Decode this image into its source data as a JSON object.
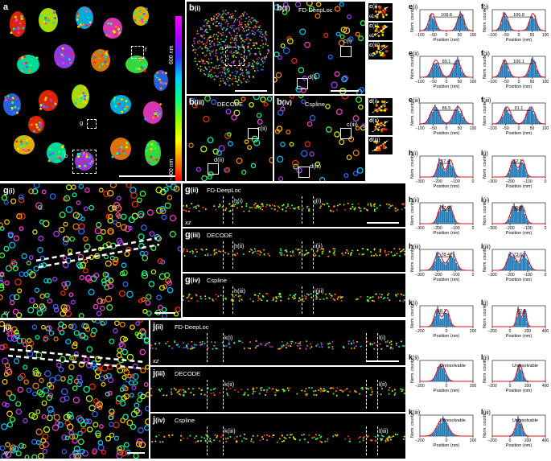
{
  "panel_a": {
    "letter": "a",
    "labels": [
      "f",
      "g",
      "b"
    ]
  },
  "colorbar": {
    "top": "600 nm",
    "bottom": "−300 nm",
    "plane": "xy"
  },
  "panel_b": {
    "bi": "b",
    "bi_sub": "(i)",
    "bii": "b",
    "bii_sub": "(ii)",
    "bii_title": "FD-DeepLoc",
    "bii_lbl": [
      "c(i)",
      "d(i)"
    ],
    "biii": "b",
    "biii_sub": "(iii)",
    "biii_title": "DECODE",
    "biii_lbl": [
      "c(ii)",
      "d(ii)"
    ],
    "biv": "b",
    "biv_sub": "(iv)",
    "biv_title": "Cspline",
    "biv_lbl": [
      "c(iii)",
      "d(iii)"
    ]
  },
  "panel_c": [
    {
      "l": "c",
      "s": "(i)"
    },
    {
      "l": "c",
      "s": "(ii)"
    },
    {
      "l": "c",
      "s": "(iii)"
    }
  ],
  "panel_d": [
    {
      "l": "d",
      "s": "(i)"
    },
    {
      "l": "d",
      "s": "(ii)"
    },
    {
      "l": "d",
      "s": "(iii)"
    }
  ],
  "cd_small": {
    "e": [
      "e(i)",
      "e(ii)",
      "e(iii)"
    ],
    "f": [
      "f(i)",
      "f(ii)",
      "f(iii)"
    ],
    "d": [
      "(i)",
      "(ii)",
      "(iii)"
    ]
  },
  "panel_g": {
    "gi": "g",
    "gi_sub": "(i)",
    "plane": "xy",
    "rows": [
      {
        "l": "g",
        "s": "(ii)",
        "title": "FD-DeepLoc",
        "marks": [
          "h(i)",
          "i(i)"
        ],
        "plane": "xz"
      },
      {
        "l": "g",
        "s": "(iii)",
        "title": "DECODE",
        "marks": [
          "h(ii)",
          "i(ii)"
        ]
      },
      {
        "l": "g",
        "s": "(iv)",
        "title": "Cspline",
        "marks": [
          "h(iii)",
          "i(iii)"
        ]
      }
    ]
  },
  "panel_j": {
    "ji": "j",
    "ji_sub": "(i)",
    "plane": "xy",
    "rows": [
      {
        "l": "j",
        "s": "(ii)",
        "title": "FD-DeepLoc",
        "marks": [
          "k(i)",
          "l(i)"
        ],
        "plane": "xz"
      },
      {
        "l": "j",
        "s": "(iii)",
        "title": "DECODE",
        "marks": [
          "k(ii)",
          "l(ii)"
        ]
      },
      {
        "l": "j",
        "s": "(iv)",
        "title": "Cspline",
        "marks": [
          "k(iii)",
          "l(iii)"
        ]
      }
    ]
  },
  "chart_data": [
    {
      "type": "bar",
      "id": "e(i)",
      "letter": "e",
      "sub": "(i)",
      "xlabel": "Position (nm)",
      "ylabel": "Norm. counts",
      "xlim": [
        -100,
        100
      ],
      "xticks": [
        -100,
        -50,
        0,
        50,
        100
      ],
      "annot": "108.8",
      "peaks": [
        -54,
        54
      ],
      "width": 12
    },
    {
      "type": "bar",
      "id": "e(ii)",
      "letter": "e",
      "sub": "(ii)",
      "xlabel": "Position (nm)",
      "ylabel": "Norm. counts",
      "xlim": [
        -100,
        100
      ],
      "xticks": [
        -100,
        -50,
        0,
        50,
        100
      ],
      "annot": "80.1",
      "peaks": [
        -40,
        40
      ],
      "width": 14
    },
    {
      "type": "bar",
      "id": "e(iii)",
      "letter": "e",
      "sub": "(iii)",
      "xlabel": "Position (nm)",
      "ylabel": "Norm. counts",
      "xlim": [
        -100,
        100
      ],
      "xticks": [
        -100,
        -50,
        0,
        50,
        100
      ],
      "annot": "86.5",
      "peaks": [
        -43,
        43
      ],
      "width": 16
    },
    {
      "type": "bar",
      "id": "f(i)",
      "letter": "f",
      "sub": "(i)",
      "xlabel": "Position (nm)",
      "ylabel": "Norm. counts",
      "xlim": [
        -100,
        100
      ],
      "xticks": [
        -100,
        -50,
        0,
        50,
        100
      ],
      "annot": "106.8",
      "peaks": [
        -53,
        53
      ],
      "width": 12
    },
    {
      "type": "bar",
      "id": "f(ii)",
      "letter": "f",
      "sub": "(ii)",
      "xlabel": "Position (nm)",
      "ylabel": "Norm. counts",
      "xlim": [
        -100,
        100
      ],
      "xticks": [
        -100,
        -50,
        0,
        50,
        100
      ],
      "annot": "106.1",
      "peaks": [
        -53,
        53
      ],
      "width": 13
    },
    {
      "type": "bar",
      "id": "f(iii)",
      "letter": "f",
      "sub": "(iii)",
      "xlabel": "Position (nm)",
      "ylabel": "Norm. counts",
      "xlim": [
        -100,
        100
      ],
      "xticks": [
        -100,
        -50,
        0,
        50,
        100
      ],
      "annot": "91.1",
      "peaks": [
        -45,
        45
      ],
      "width": 15
    },
    {
      "type": "bar",
      "id": "h(i)",
      "letter": "h",
      "sub": "(i)",
      "xlabel": "Position (nm)",
      "ylabel": "Norm. counts",
      "xlim": [
        -300,
        0
      ],
      "xticks": [
        -300,
        -200,
        -100,
        0
      ],
      "annot": "57.4",
      "peaks": [
        -185,
        -128
      ],
      "width": 16
    },
    {
      "type": "bar",
      "id": "h(ii)",
      "letter": "h",
      "sub": "(ii)",
      "xlabel": "Position (nm)",
      "ylabel": "Norm. counts",
      "xlim": [
        -300,
        0
      ],
      "xticks": [
        -300,
        -200,
        -100,
        0
      ],
      "annot": "47.9",
      "peaks": [
        -180,
        -132
      ],
      "width": 18
    },
    {
      "type": "bar",
      "id": "h(iii)",
      "letter": "h",
      "sub": "(iii)",
      "xlabel": "Position (nm)",
      "ylabel": "Norm. counts",
      "xlim": [
        -300,
        0
      ],
      "xticks": [
        -300,
        -200,
        -100,
        0
      ],
      "annot": "78.4",
      "peaks": [
        -195,
        -117
      ],
      "width": 22
    },
    {
      "type": "bar",
      "id": "i(i)",
      "letter": "i",
      "sub": "(i)",
      "xlabel": "Position (nm)",
      "ylabel": "Norm. counts",
      "xlim": [
        -300,
        0
      ],
      "xticks": [
        -300,
        -200,
        -100,
        0
      ],
      "annot": "52.1",
      "peaks": [
        -182,
        -130
      ],
      "width": 16
    },
    {
      "type": "bar",
      "id": "i(ii)",
      "letter": "i",
      "sub": "(ii)",
      "xlabel": "Position (nm)",
      "ylabel": "Norm. counts",
      "xlim": [
        -300,
        0
      ],
      "xticks": [
        -300,
        -200,
        -100,
        0
      ],
      "annot": "48.8",
      "peaks": [
        -180,
        -131
      ],
      "width": 18
    },
    {
      "type": "bar",
      "id": "i(iii)",
      "letter": "i",
      "sub": "(iii)",
      "xlabel": "Position (nm)",
      "ylabel": "Norm. counts",
      "xlim": [
        -300,
        0
      ],
      "xticks": [
        -300,
        -200,
        -100,
        0
      ],
      "annot": "73.6",
      "peaks": [
        -192,
        -118
      ],
      "width": 22
    },
    {
      "type": "bar",
      "id": "k(i)",
      "letter": "k",
      "sub": "(i)",
      "xlabel": "Position (nm)",
      "ylabel": "Norm. counts",
      "xlim": [
        -200,
        200
      ],
      "xticks": [
        -200,
        0,
        200
      ],
      "annot": "68.1",
      "peaks": [
        -70,
        0
      ],
      "width": 22
    },
    {
      "type": "bar",
      "id": "k(ii)",
      "letter": "k",
      "sub": "(ii)",
      "xlabel": "Position (nm)",
      "ylabel": "Norm. counts",
      "xlim": [
        -200,
        200
      ],
      "xticks": [
        -200,
        0,
        200
      ],
      "annot": "Unresolvable",
      "peaks": [
        -40
      ],
      "width": 30
    },
    {
      "type": "bar",
      "id": "k(iii)",
      "letter": "k",
      "sub": "(iii)",
      "xlabel": "Position (nm)",
      "ylabel": "Norm. counts",
      "xlim": [
        -200,
        200
      ],
      "xticks": [
        -200,
        0,
        200
      ],
      "annot": "Unresolvable",
      "peaks": [
        -30
      ],
      "width": 40
    },
    {
      "type": "bar",
      "id": "l(i)",
      "letter": "l",
      "sub": "(i)",
      "xlabel": "Position (nm)",
      "ylabel": "Norm. counts",
      "xlim": [
        -200,
        400
      ],
      "xticks": [
        -200,
        0,
        200,
        400
      ],
      "annot": "72.0",
      "peaks": [
        95,
        165
      ],
      "width": 22
    },
    {
      "type": "bar",
      "id": "l(ii)",
      "letter": "l",
      "sub": "(ii)",
      "xlabel": "Position (nm)",
      "ylabel": "Norm. counts",
      "xlim": [
        -200,
        400
      ],
      "xticks": [
        -200,
        0,
        200,
        400
      ],
      "annot": "Unresolvable",
      "peaks": [
        110
      ],
      "width": 30
    },
    {
      "type": "bar",
      "id": "l(iii)",
      "letter": "l",
      "sub": "(iii)",
      "xlabel": "Position (nm)",
      "ylabel": "Norm. counts",
      "xlim": [
        -200,
        400
      ],
      "xticks": [
        -200,
        0,
        200,
        400
      ],
      "annot": "Unresolvable",
      "peaks": [
        100
      ],
      "width": 35
    }
  ]
}
